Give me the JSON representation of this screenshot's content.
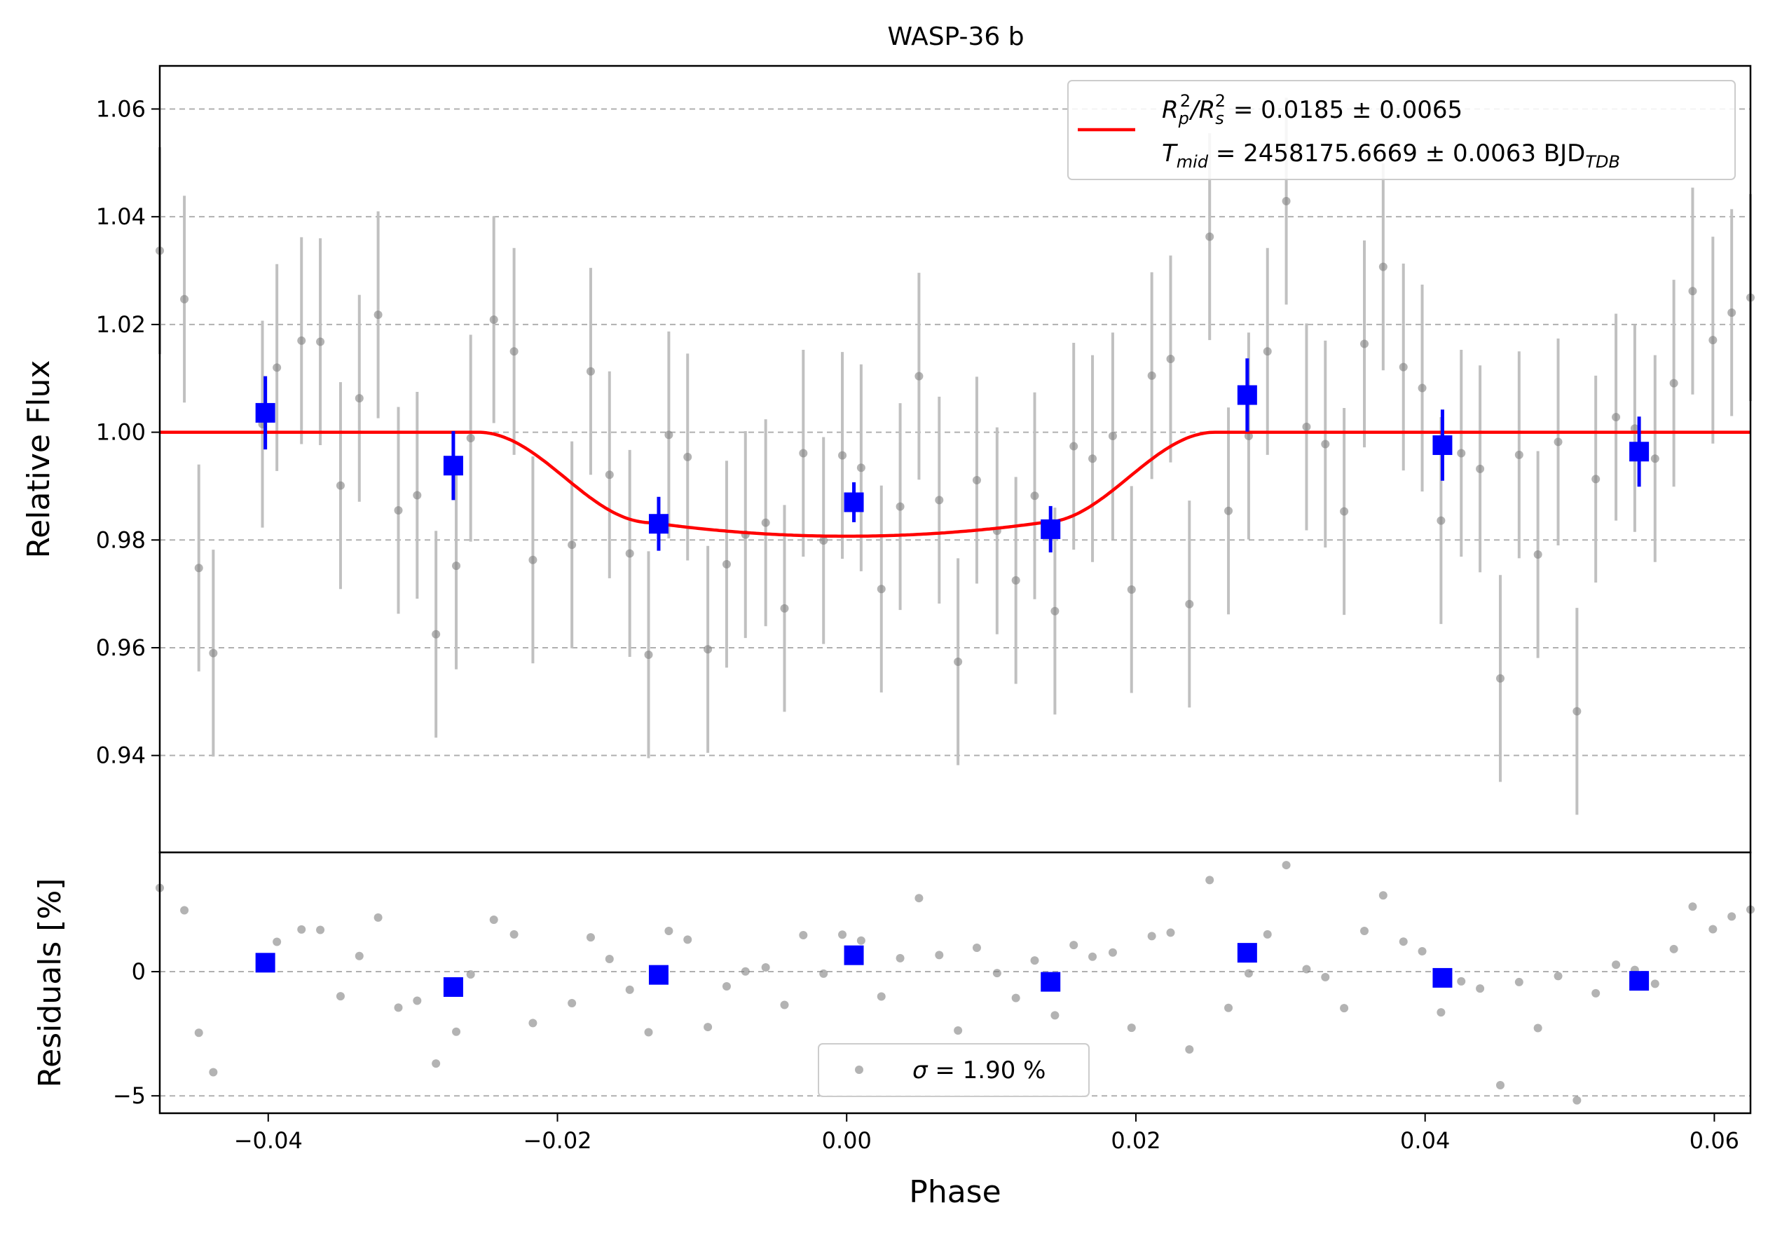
{
  "chart_data": [
    {
      "type": "scatter",
      "title": "WASP-36 b",
      "xlabel": "",
      "ylabel": "Relative Flux",
      "xlim": [
        -0.0475,
        0.0625
      ],
      "ylim": [
        0.922,
        1.068
      ],
      "grid": "horizontal dashed",
      "xticks": [
        -0.04,
        -0.02,
        0.0,
        0.02,
        0.04,
        0.06
      ],
      "xtick_labels": [
        "−0.04",
        "−0.02",
        "0.00",
        "0.02",
        "0.04",
        "0.06"
      ],
      "yticks": [
        0.94,
        0.96,
        0.98,
        1.0,
        1.02,
        1.04,
        1.06
      ],
      "ytick_labels": [
        "0.94",
        "0.96",
        "0.98",
        "1.00",
        "1.02",
        "1.04",
        "1.06"
      ],
      "legend_position": "top-right",
      "model": {
        "color": "#ff0000",
        "depth": 0.0193,
        "t1": -0.0255,
        "t2": -0.0135,
        "t3": 0.0135,
        "t4": 0.0255,
        "legend_line1_parts": [
          "R",
          "p",
          "2",
          "/R",
          "s",
          "2",
          " = 0.0185 ± 0.0065"
        ],
        "legend_line2_parts": [
          "T",
          "mid",
          " = 2458175.6669 ± 0.0063 BJD",
          "TDB"
        ]
      },
      "raw": {
        "color": "#808080",
        "err": 0.0192,
        "x": [
          -0.0475,
          -0.0458,
          -0.0448,
          -0.0438,
          -0.0404,
          -0.0394,
          -0.0377,
          -0.0364,
          -0.035,
          -0.0337,
          -0.0324,
          -0.031,
          -0.0297,
          -0.0284,
          -0.027,
          -0.026,
          -0.0244,
          -0.023,
          -0.0217,
          -0.019,
          -0.0177,
          -0.0164,
          -0.015,
          -0.0137,
          -0.0123,
          -0.011,
          -0.0096,
          -0.0083,
          -0.007,
          -0.0056,
          -0.0043,
          -0.003,
          -0.0016,
          -0.0003,
          0.001,
          0.0024,
          0.0037,
          0.005,
          0.0064,
          0.0077,
          0.009,
          0.0104,
          0.0117,
          0.013,
          0.0144,
          0.0157,
          0.017,
          0.0184,
          0.0197,
          0.0211,
          0.0224,
          0.0237,
          0.0251,
          0.0264,
          0.0278,
          0.0291,
          0.0304,
          0.0318,
          0.0331,
          0.0344,
          0.0358,
          0.0371,
          0.0385,
          0.0398,
          0.0411,
          0.0425,
          0.0438,
          0.0452,
          0.0465,
          0.0478,
          0.0492,
          0.0505,
          0.0518,
          0.0532,
          0.0545,
          0.0559,
          0.0572,
          0.0585,
          0.0599,
          0.0612,
          0.0625
        ],
        "y": [
          1.0337,
          1.0247,
          0.9748,
          0.959,
          1.0015,
          1.012,
          1.017,
          1.0168,
          0.9901,
          1.0063,
          1.0218,
          0.9855,
          0.9883,
          0.9625,
          0.9752,
          0.9989,
          1.0209,
          1.015,
          0.9763,
          0.9791,
          1.0113,
          0.9921,
          0.9775,
          0.9587,
          0.9995,
          0.9954,
          0.9597,
          0.9755,
          0.981,
          0.9832,
          0.9673,
          0.9961,
          0.9799,
          0.9957,
          0.9934,
          0.9709,
          0.9862,
          1.0104,
          0.9874,
          0.9574,
          0.9911,
          0.9817,
          0.9725,
          0.9882,
          0.9668,
          0.9974,
          0.9951,
          0.9993,
          0.9708,
          1.0105,
          1.0136,
          0.9681,
          1.0363,
          0.9854,
          0.9993,
          1.015,
          1.0429,
          1.001,
          0.9978,
          0.9853,
          1.0164,
          1.0307,
          1.0121,
          1.0082,
          0.9836,
          0.9961,
          0.9932,
          0.9543,
          0.9958,
          0.9773,
          0.9982,
          0.9482,
          0.9913,
          1.0028,
          1.0007,
          0.9951,
          1.0091,
          1.0262,
          1.0171,
          1.0222,
          1.025
        ]
      },
      "binned": {
        "color": "#0000ff",
        "x": [
          -0.0402,
          -0.0272,
          -0.013,
          0.0005,
          0.0141,
          0.0277,
          0.0412,
          0.0548
        ],
        "y": [
          1.0036,
          0.9938,
          0.983,
          0.987,
          0.982,
          1.0069,
          0.9976,
          0.9964
        ],
        "err": [
          0.0068,
          0.0064,
          0.005,
          0.0037,
          0.0043,
          0.0068,
          0.0066,
          0.0065
        ]
      }
    },
    {
      "type": "scatter",
      "xlabel": "Phase",
      "ylabel": "Residuals [%]",
      "xlim": [
        -0.0475,
        0.0625
      ],
      "ylim": [
        -5.7,
        4.8
      ],
      "yticks": [
        -5,
        0
      ],
      "ytick_labels": [
        "−5",
        "0"
      ],
      "grid": "horizontal dashed",
      "legend_position": "bottom-center",
      "legend_parts": [
        "σ",
        " = 1.90 %"
      ],
      "raw_y": [
        3.37,
        2.47,
        -2.46,
        -4.05,
        0.15,
        1.2,
        1.7,
        1.68,
        -0.99,
        0.63,
        2.18,
        -1.45,
        -1.17,
        -3.7,
        -2.42,
        -0.11,
        2.09,
        1.5,
        -2.07,
        -1.27,
        1.38,
        0.51,
        -0.73,
        -2.44,
        1.64,
        1.29,
        -2.23,
        -0.59,
        0.01,
        0.17,
        -1.34,
        1.47,
        -0.08,
        1.49,
        1.25,
        -1.0,
        0.54,
        2.96,
        0.67,
        -2.37,
        0.96,
        -0.06,
        -1.06,
        0.45,
        -1.76,
        1.07,
        0.6,
        0.77,
        -2.26,
        1.43,
        1.57,
        -3.13,
        3.69,
        -1.46,
        -0.07,
        1.5,
        4.29,
        0.1,
        -0.22,
        -1.47,
        1.64,
        3.07,
        1.21,
        0.82,
        -1.64,
        -0.39,
        -0.68,
        -4.57,
        -0.42,
        -2.27,
        -0.18,
        -5.18,
        -0.87,
        0.28,
        0.07,
        -0.49,
        0.91,
        2.62,
        1.71,
        2.22,
        2.5
      ],
      "binned_y": [
        0.36,
        -0.62,
        -0.13,
        0.66,
        -0.41,
        0.76,
        -0.25,
        -0.37
      ]
    }
  ]
}
